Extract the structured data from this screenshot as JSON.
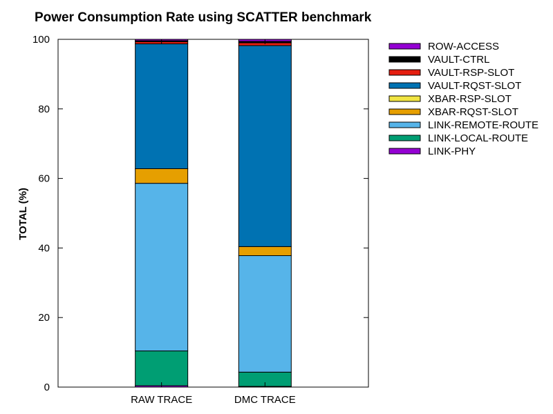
{
  "chart_data": {
    "type": "bar",
    "stacked": true,
    "title": "Power Consumption Rate using SCATTER benchmark",
    "xlabel": "",
    "ylabel": "TOTAL (%)",
    "ylim": [
      0,
      100
    ],
    "yticks": [
      0,
      20,
      40,
      60,
      80,
      100
    ],
    "categories": [
      "RAW TRACE",
      "DMC TRACE"
    ],
    "legend_position": "right",
    "series": [
      {
        "name": "LINK-PHY",
        "color": "#9400d3",
        "values": [
          0.4,
          0.2
        ]
      },
      {
        "name": "LINK-LOCAL-ROUTE",
        "color": "#009e73",
        "values": [
          10.0,
          4.1
        ]
      },
      {
        "name": "LINK-REMOTE-ROUTE",
        "color": "#56b4e9",
        "values": [
          48.2,
          33.5
        ]
      },
      {
        "name": "XBAR-RQST-SLOT",
        "color": "#e69f00",
        "values": [
          4.2,
          2.6
        ]
      },
      {
        "name": "XBAR-RSP-SLOT",
        "color": "#f0e442",
        "values": [
          0.0,
          0.0
        ]
      },
      {
        "name": "VAULT-RQST-SLOT",
        "color": "#0072b2",
        "values": [
          35.9,
          57.8
        ]
      },
      {
        "name": "VAULT-RSP-SLOT",
        "color": "#e51e10",
        "values": [
          0.6,
          0.8
        ]
      },
      {
        "name": "VAULT-CTRL",
        "color": "#000000",
        "values": [
          0.3,
          0.4
        ]
      },
      {
        "name": "ROW-ACCESS",
        "color": "#9400d3",
        "values": [
          0.4,
          0.6
        ]
      }
    ],
    "legend_order": [
      "ROW-ACCESS",
      "VAULT-CTRL",
      "VAULT-RSP-SLOT",
      "VAULT-RQST-SLOT",
      "XBAR-RSP-SLOT",
      "XBAR-RQST-SLOT",
      "LINK-REMOTE-ROUTE",
      "LINK-LOCAL-ROUTE",
      "LINK-PHY"
    ]
  }
}
